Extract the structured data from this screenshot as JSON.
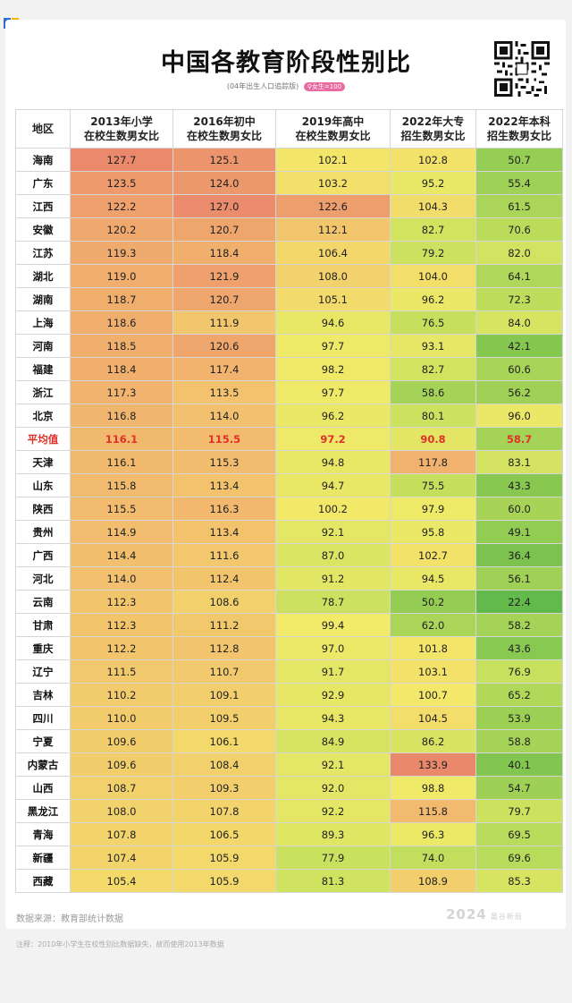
{
  "title": "中国各教育阶段性别比",
  "subtitle": "(04年出生人口追踪版)",
  "badge": "女生=100",
  "headers": [
    {
      "line1": "地区",
      "line2": ""
    },
    {
      "line1": "2013年小学",
      "line2": "在校生数男女比"
    },
    {
      "line1": "2016年初中",
      "line2": "在校生数男女比"
    },
    {
      "line1": "2019年高中",
      "line2": "在校生数男女比"
    },
    {
      "line1": "2022年大专",
      "line2": "招生数男女比"
    },
    {
      "line1": "2022年本科",
      "line2": "招生数男女比"
    }
  ],
  "rows": [
    {
      "region": "海南",
      "values": [
        "127.7",
        "125.1",
        "102.1",
        "102.8",
        "50.7"
      ]
    },
    {
      "region": "广东",
      "values": [
        "123.5",
        "124.0",
        "103.2",
        "95.2",
        "55.4"
      ]
    },
    {
      "region": "江西",
      "values": [
        "122.2",
        "127.0",
        "122.6",
        "104.3",
        "61.5"
      ]
    },
    {
      "region": "安徽",
      "values": [
        "120.2",
        "120.7",
        "112.1",
        "82.7",
        "70.6"
      ]
    },
    {
      "region": "江苏",
      "values": [
        "119.3",
        "118.4",
        "106.4",
        "79.2",
        "82.0"
      ]
    },
    {
      "region": "湖北",
      "values": [
        "119.0",
        "121.9",
        "108.0",
        "104.0",
        "64.1"
      ]
    },
    {
      "region": "湖南",
      "values": [
        "118.7",
        "120.7",
        "105.1",
        "96.2",
        "72.3"
      ]
    },
    {
      "region": "上海",
      "values": [
        "118.6",
        "111.9",
        "94.6",
        "76.5",
        "84.0"
      ]
    },
    {
      "region": "河南",
      "values": [
        "118.5",
        "120.6",
        "97.7",
        "93.1",
        "42.1"
      ]
    },
    {
      "region": "福建",
      "values": [
        "118.4",
        "117.4",
        "98.2",
        "82.7",
        "60.6"
      ]
    },
    {
      "region": "浙江",
      "values": [
        "117.3",
        "113.5",
        "97.7",
        "58.6",
        "56.2"
      ]
    },
    {
      "region": "北京",
      "values": [
        "116.8",
        "114.0",
        "96.2",
        "80.1",
        "96.0"
      ]
    },
    {
      "region": "平均值",
      "values": [
        "116.1",
        "115.5",
        "97.2",
        "90.8",
        "58.7"
      ],
      "avg": true
    },
    {
      "region": "天津",
      "values": [
        "116.1",
        "115.3",
        "94.8",
        "117.8",
        "83.1"
      ]
    },
    {
      "region": "山东",
      "values": [
        "115.8",
        "113.4",
        "94.7",
        "75.5",
        "43.3"
      ]
    },
    {
      "region": "陕西",
      "values": [
        "115.5",
        "116.3",
        "100.2",
        "97.9",
        "60.0"
      ]
    },
    {
      "region": "贵州",
      "values": [
        "114.9",
        "113.4",
        "92.1",
        "95.8",
        "49.1"
      ]
    },
    {
      "region": "广西",
      "values": [
        "114.4",
        "111.6",
        "87.0",
        "102.7",
        "36.4"
      ]
    },
    {
      "region": "河北",
      "values": [
        "114.0",
        "112.4",
        "91.2",
        "94.5",
        "56.1"
      ]
    },
    {
      "region": "云南",
      "values": [
        "112.3",
        "108.6",
        "78.7",
        "50.2",
        "22.4"
      ]
    },
    {
      "region": "甘肃",
      "values": [
        "112.3",
        "111.2",
        "99.4",
        "62.0",
        "58.2"
      ]
    },
    {
      "region": "重庆",
      "values": [
        "112.2",
        "112.8",
        "97.0",
        "101.8",
        "43.6"
      ]
    },
    {
      "region": "辽宁",
      "values": [
        "111.5",
        "110.7",
        "91.7",
        "103.1",
        "76.9"
      ]
    },
    {
      "region": "吉林",
      "values": [
        "110.2",
        "109.1",
        "92.9",
        "100.7",
        "65.2"
      ]
    },
    {
      "region": "四川",
      "values": [
        "110.0",
        "109.5",
        "94.3",
        "104.5",
        "53.9"
      ]
    },
    {
      "region": "宁夏",
      "values": [
        "109.6",
        "106.1",
        "84.9",
        "86.2",
        "58.8"
      ]
    },
    {
      "region": "内蒙古",
      "values": [
        "109.6",
        "108.4",
        "92.1",
        "133.9",
        "40.1"
      ]
    },
    {
      "region": "山西",
      "values": [
        "108.7",
        "109.3",
        "92.0",
        "98.8",
        "54.7"
      ]
    },
    {
      "region": "黑龙江",
      "values": [
        "108.0",
        "107.8",
        "92.2",
        "115.8",
        "79.7"
      ]
    },
    {
      "region": "青海",
      "values": [
        "107.8",
        "106.5",
        "89.3",
        "96.3",
        "69.5"
      ]
    },
    {
      "region": "新疆",
      "values": [
        "107.4",
        "105.9",
        "77.9",
        "74.0",
        "69.6"
      ]
    },
    {
      "region": "西藏",
      "values": [
        "105.4",
        "105.9",
        "81.3",
        "108.9",
        "85.3"
      ]
    }
  ],
  "source": "数据来源：教育部统计数据",
  "brand": "2024",
  "brand_small": "莆谷新局",
  "footnote": "注释：2010年小学生在校性别比数据缺失，故而使用2013年数据",
  "colors": {
    "high": "#e98a6e",
    "mid": "#f3e96a",
    "low": "#6fbf52",
    "average_text": "#e0312a"
  }
}
